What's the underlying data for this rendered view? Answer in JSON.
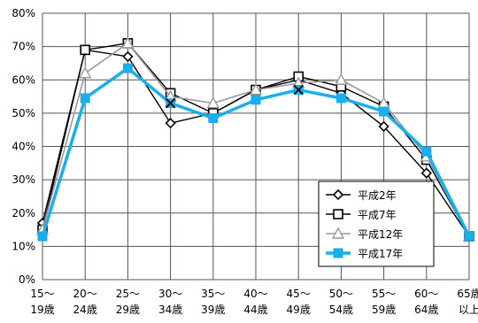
{
  "chart_data": {
    "type": "line",
    "categories": [
      [
        "15～",
        "19歳"
      ],
      [
        "20～",
        "24歳"
      ],
      [
        "25～",
        "29歳"
      ],
      [
        "30～",
        "34歳"
      ],
      [
        "35～",
        "39歳"
      ],
      [
        "40～",
        "44歳"
      ],
      [
        "45～",
        "49歳"
      ],
      [
        "50～",
        "54歳"
      ],
      [
        "55～",
        "59歳"
      ],
      [
        "60～",
        "64歳"
      ],
      [
        "65歳",
        "以上"
      ]
    ],
    "y_ticks": [
      "0%",
      "10%",
      "20%",
      "30%",
      "40%",
      "50%",
      "60%",
      "70%",
      "80%"
    ],
    "ylim": [
      0,
      80
    ],
    "grid": true,
    "legend_position": "bottom-right",
    "series": [
      {
        "name": "平成2年",
        "marker": "diamond",
        "color": "#000000",
        "values": [
          17,
          69,
          67,
          47,
          50,
          57,
          60,
          56,
          46,
          32,
          13
        ]
      },
      {
        "name": "平成7年",
        "marker": "square",
        "color": "#000000",
        "values": [
          15,
          69,
          71,
          56,
          50,
          57,
          61,
          58,
          52,
          36,
          13
        ]
      },
      {
        "name": "平成12年",
        "marker": "triangle",
        "color": "#999999",
        "values": [
          15,
          62,
          71,
          55,
          53,
          57,
          59,
          60,
          53,
          37,
          13
        ]
      },
      {
        "name": "平成17年",
        "marker": "square-filled",
        "color": "#1aaeea",
        "values": [
          13,
          54.5,
          63.5,
          53,
          48.5,
          54,
          57,
          54.5,
          50.5,
          38.5,
          13
        ]
      },
      {
        "name": "",
        "marker": "x",
        "color": "#000000",
        "values": [
          null,
          null,
          null,
          53,
          null,
          null,
          57,
          null,
          null,
          null,
          null
        ]
      }
    ]
  }
}
